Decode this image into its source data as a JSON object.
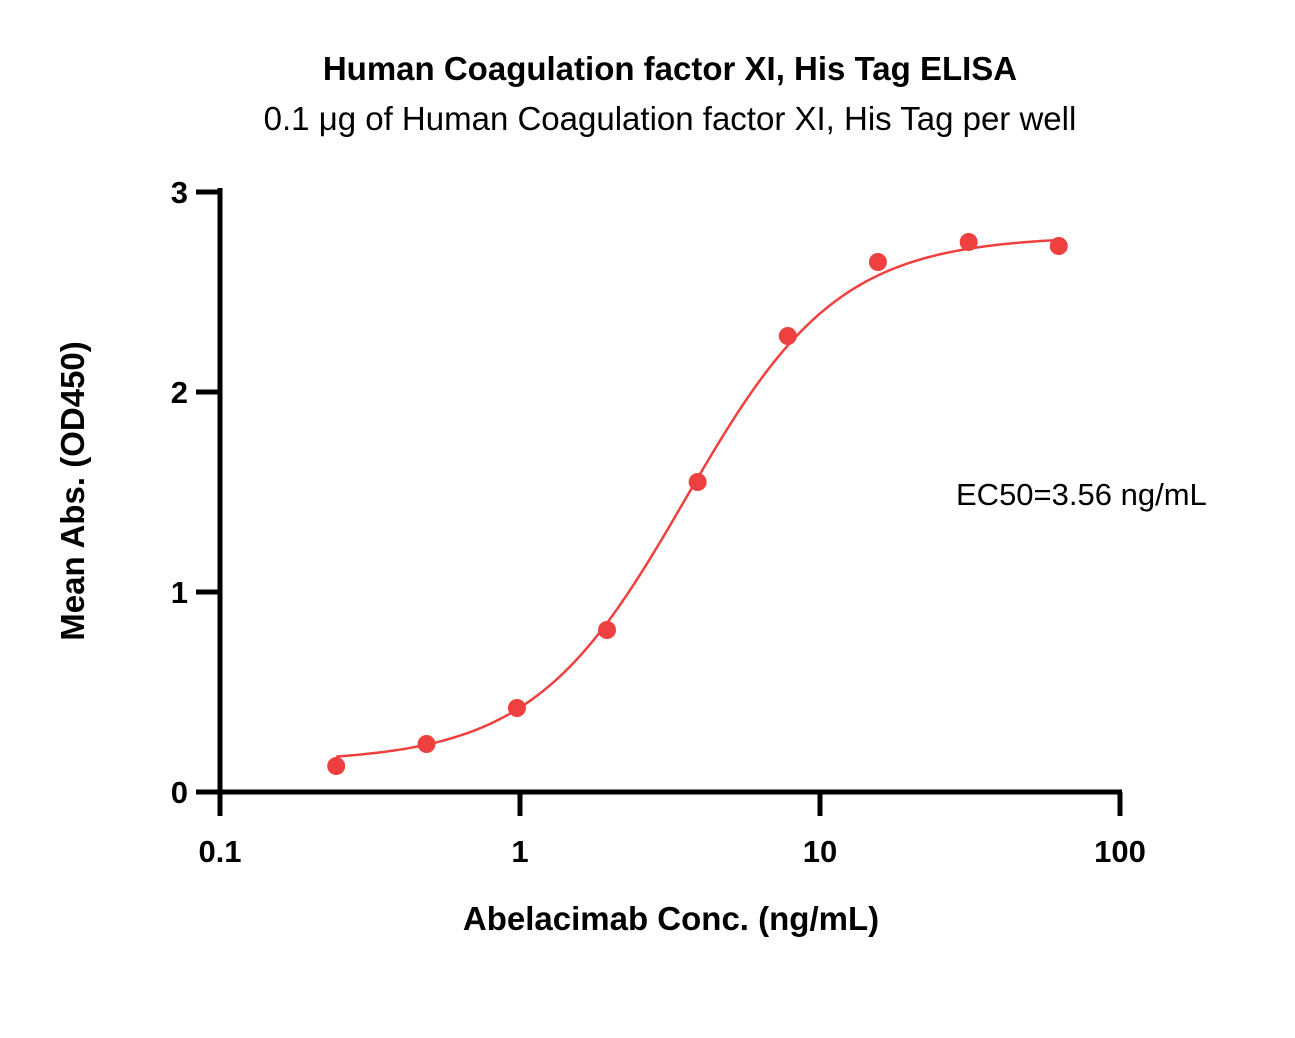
{
  "chart_data": {
    "type": "scatter",
    "title": "Human Coagulation factor XI, His Tag ELISA",
    "subtitle": "0.1 μg of Human Coagulation factor XI, His Tag per well",
    "xlabel": "Abelacimab Conc. (ng/mL)",
    "ylabel": "Mean Abs. (OD450)",
    "x_scale": "log",
    "xlim": [
      0.1,
      100
    ],
    "ylim": [
      0,
      3
    ],
    "x_ticks": [
      0.1,
      1,
      10,
      100
    ],
    "x_tick_labels": [
      "0.1",
      "1",
      "10",
      "100"
    ],
    "y_ticks": [
      0,
      1,
      2,
      3
    ],
    "y_tick_labels": [
      "0",
      "1",
      "2",
      "3"
    ],
    "grid": false,
    "legend": "none",
    "series": [
      {
        "color": "#ef4040",
        "marker": "circle",
        "points": [
          {
            "x": 0.244,
            "y": 0.13
          },
          {
            "x": 0.488,
            "y": 0.24
          },
          {
            "x": 0.977,
            "y": 0.42
          },
          {
            "x": 1.95,
            "y": 0.81
          },
          {
            "x": 3.91,
            "y": 1.55
          },
          {
            "x": 7.81,
            "y": 2.28
          },
          {
            "x": 15.6,
            "y": 2.65
          },
          {
            "x": 31.3,
            "y": 2.75
          },
          {
            "x": 62.5,
            "y": 2.73
          }
        ],
        "fit": {
          "model": "4PL",
          "bottom": 0.15,
          "top": 2.78,
          "ec50": 3.56,
          "hill": 1.7
        }
      }
    ],
    "annotations": [
      {
        "text": "EC50=3.56 ng/mL"
      }
    ]
  }
}
